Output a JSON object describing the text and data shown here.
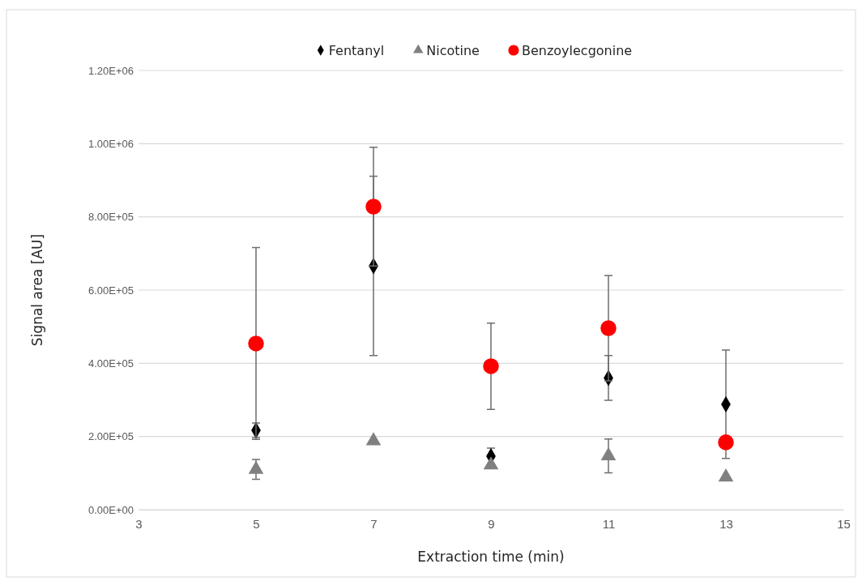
{
  "chart_data": {
    "type": "scatter",
    "xlabel": "Extraction time (min)",
    "ylabel": "Signal area [AU]",
    "x": [
      5,
      7,
      9,
      11,
      13
    ],
    "series": [
      {
        "name": "Fentanyl",
        "color": "#000000",
        "marker": "diamond",
        "values": [
          217000,
          666000,
          146000,
          360000,
          288000
        ],
        "errors": [
          20000,
          245000,
          22000,
          61000,
          148000
        ]
      },
      {
        "name": "Nicotine",
        "color": "#808080",
        "marker": "triangle",
        "values": [
          110000,
          188000,
          122000,
          147000,
          89000
        ],
        "errors": [
          27000,
          null,
          null,
          46000,
          null
        ]
      },
      {
        "name": "Benzoylecgonine",
        "color": "#ff0000",
        "marker": "circle",
        "values": [
          454000,
          828000,
          392000,
          496000,
          184000
        ],
        "errors": [
          262000,
          162000,
          118000,
          144000,
          null
        ]
      }
    ],
    "xlim": [
      3,
      15
    ],
    "xticks": [
      3,
      5,
      7,
      9,
      11,
      13,
      15
    ],
    "ylim": [
      0,
      1200000
    ],
    "yticks": [
      {
        "value": 0,
        "label": "0.00E+00"
      },
      {
        "value": 200000,
        "label": "2.00E+05"
      },
      {
        "value": 400000,
        "label": "4.00E+05"
      },
      {
        "value": 600000,
        "label": "6.00E+05"
      },
      {
        "value": 800000,
        "label": "8.00E+05"
      },
      {
        "value": 1000000,
        "label": "1.00E+06"
      },
      {
        "value": 1200000,
        "label": "1.20E+06"
      }
    ],
    "grid": "y",
    "legend": "top"
  }
}
